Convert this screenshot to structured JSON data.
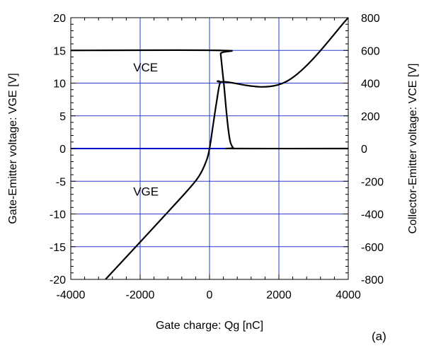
{
  "chart_data": {
    "type": "line",
    "title": "",
    "xlabel": "Gate charge: Qg [nC]",
    "ylabel_left": "Gate-Emitter voltage:  VGE [V]",
    "ylabel_right": "Collector-Emitter voltage: VCE [V]",
    "xlim": [
      -4000,
      4000
    ],
    "ylim_left": [
      -20,
      20
    ],
    "ylim_right": [
      -800,
      800
    ],
    "x_ticks": [
      -4000,
      -2000,
      0,
      2000,
      4000
    ],
    "y_ticks_left": [
      -20,
      -15,
      -10,
      -5,
      0,
      5,
      10,
      15,
      20
    ],
    "y_ticks_right": [
      -800,
      -600,
      -400,
      -200,
      0,
      200,
      400,
      600,
      800
    ],
    "x_tick_labels": [
      "-4000",
      "-2000",
      "0",
      "2000",
      "4000"
    ],
    "y_tick_labels_left": [
      "-20",
      "-15",
      "-10",
      "-5",
      "0",
      "5",
      "10",
      "15",
      "20"
    ],
    "y_tick_labels_right": [
      "-800",
      "-600",
      "-400",
      "-200",
      "0",
      "200",
      "400",
      "600",
      "800"
    ],
    "grid": true,
    "panel_label": "(a)",
    "series": [
      {
        "name": "VGE",
        "axis": "left",
        "color": "#000000",
        "x": [
          -3000,
          -2000,
          -1200,
          -600,
          -300,
          -100,
          0,
          100,
          200,
          300,
          400,
          2200,
          4000
        ],
        "y": [
          -20,
          -14.3,
          -9.7,
          -6.2,
          -4.2,
          -2.0,
          0,
          3.5,
          7.0,
          10.0,
          10.2,
          10.2,
          20
        ]
      },
      {
        "name": "VCE",
        "axis": "right",
        "color": "#000000",
        "x": [
          -4000,
          300,
          320,
          360,
          420,
          480,
          540,
          600,
          680,
          750,
          4000
        ],
        "y": [
          600,
          600,
          580,
          500,
          380,
          240,
          120,
          40,
          5,
          0,
          0
        ]
      }
    ],
    "annotations": [
      {
        "text": "VCE",
        "x": -2200,
        "y": 11.8
      },
      {
        "text": "VGE",
        "x": -2200,
        "y": -7.2
      }
    ],
    "zero_line_color": "#0000cc",
    "grid_color": "#2a3bd4"
  }
}
